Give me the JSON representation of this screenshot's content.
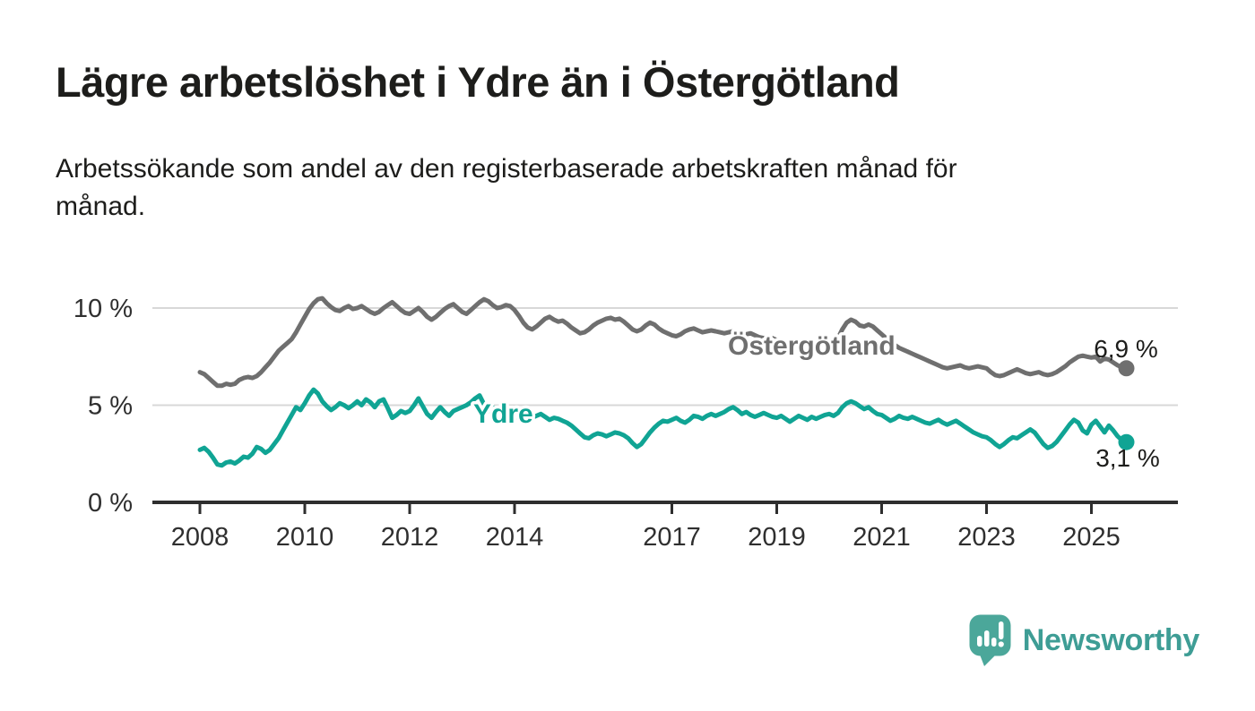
{
  "header": {
    "title": "Lägre arbetslöshet i Ydre än i Östergötland",
    "subtitle": "Arbetssökande som andel av den registerbaserade arbetskraften månad för\nmånad."
  },
  "chart_data": {
    "type": "line",
    "unit": "%",
    "frequency": "monthly",
    "x_start": "2008-01",
    "x_end": "2025-09",
    "grid": "horizontal",
    "legend": "inline-labels",
    "ylim": [
      0,
      11.2
    ],
    "x_ticks": [
      2008,
      2010,
      2012,
      2014,
      2017,
      2019,
      2021,
      2023,
      2025
    ],
    "y_axis": {
      "values": [
        0,
        5,
        10
      ],
      "labels": [
        "0 %",
        "5 %",
        "10 %"
      ]
    },
    "series": [
      {
        "name": "Östergötland",
        "color": "#6f6f6f",
        "end_label": "6,9 %",
        "end_value": 6.9,
        "values": [
          6.7,
          6.6,
          6.4,
          6.2,
          6.0,
          6.0,
          6.1,
          6.05,
          6.1,
          6.3,
          6.4,
          6.45,
          6.4,
          6.5,
          6.7,
          6.95,
          7.2,
          7.5,
          7.8,
          8.0,
          8.2,
          8.4,
          8.75,
          9.15,
          9.55,
          9.95,
          10.25,
          10.45,
          10.5,
          10.25,
          10.05,
          9.9,
          9.85,
          10.0,
          10.1,
          9.95,
          10.0,
          10.1,
          9.95,
          9.8,
          9.7,
          9.8,
          10.0,
          10.15,
          10.3,
          10.1,
          9.9,
          9.75,
          9.7,
          9.85,
          10.0,
          9.8,
          9.55,
          9.4,
          9.55,
          9.75,
          9.95,
          10.1,
          10.2,
          10.0,
          9.8,
          9.7,
          9.9,
          10.1,
          10.3,
          10.45,
          10.35,
          10.15,
          10.0,
          10.05,
          10.15,
          10.1,
          9.9,
          9.6,
          9.25,
          9.0,
          8.9,
          9.05,
          9.25,
          9.45,
          9.55,
          9.4,
          9.3,
          9.35,
          9.2,
          9.0,
          8.85,
          8.7,
          8.75,
          8.9,
          9.1,
          9.25,
          9.35,
          9.45,
          9.5,
          9.4,
          9.45,
          9.3,
          9.1,
          8.9,
          8.8,
          8.9,
          9.1,
          9.25,
          9.15,
          8.95,
          8.8,
          8.7,
          8.6,
          8.55,
          8.65,
          8.8,
          8.9,
          8.95,
          8.85,
          8.75,
          8.8,
          8.85,
          8.8,
          8.75,
          8.7,
          8.75,
          8.8,
          8.7,
          8.6,
          8.65,
          8.7,
          8.6,
          8.5,
          8.45,
          8.5,
          8.45,
          8.35,
          8.3,
          8.2,
          8.1,
          8.05,
          8.1,
          8.15,
          8.05,
          8.0,
          8.05,
          8.1,
          8.15,
          8.2,
          8.25,
          8.45,
          8.9,
          9.25,
          9.4,
          9.3,
          9.1,
          9.05,
          9.15,
          9.05,
          8.85,
          8.65,
          8.45,
          8.25,
          8.1,
          7.95,
          7.85,
          7.75,
          7.65,
          7.55,
          7.45,
          7.35,
          7.25,
          7.15,
          7.05,
          6.95,
          6.9,
          6.95,
          7.0,
          7.05,
          6.95,
          6.9,
          6.95,
          7.0,
          6.95,
          6.9,
          6.7,
          6.55,
          6.5,
          6.55,
          6.65,
          6.75,
          6.85,
          6.75,
          6.65,
          6.6,
          6.65,
          6.7,
          6.6,
          6.55,
          6.6,
          6.7,
          6.85,
          7.0,
          7.2,
          7.35,
          7.5,
          7.55,
          7.5,
          7.45,
          7.5,
          7.25,
          7.4,
          7.35,
          7.2,
          7.05,
          6.95,
          6.9
        ]
      },
      {
        "name": "Ydre",
        "color": "#10a494",
        "end_label": "3,1 %",
        "end_value": 3.1,
        "values": [
          2.7,
          2.8,
          2.6,
          2.3,
          1.95,
          1.9,
          2.05,
          2.1,
          2.0,
          2.15,
          2.35,
          2.3,
          2.5,
          2.85,
          2.75,
          2.55,
          2.7,
          3.0,
          3.3,
          3.7,
          4.1,
          4.5,
          4.9,
          4.75,
          5.1,
          5.5,
          5.8,
          5.6,
          5.2,
          4.95,
          4.75,
          4.9,
          5.1,
          5.0,
          4.85,
          5.0,
          5.2,
          5.0,
          5.3,
          5.15,
          4.9,
          5.2,
          5.3,
          4.85,
          4.35,
          4.5,
          4.7,
          4.6,
          4.7,
          5.0,
          5.35,
          4.95,
          4.55,
          4.35,
          4.65,
          4.9,
          4.65,
          4.45,
          4.7,
          4.8,
          4.9,
          5.0,
          5.15,
          5.35,
          5.5,
          5.05,
          4.7,
          4.9,
          4.65,
          4.45,
          4.6,
          4.55,
          4.35,
          4.45,
          4.6,
          4.5,
          4.35,
          4.45,
          4.55,
          4.4,
          4.25,
          4.35,
          4.3,
          4.2,
          4.1,
          3.95,
          3.75,
          3.55,
          3.35,
          3.3,
          3.45,
          3.55,
          3.5,
          3.4,
          3.5,
          3.6,
          3.55,
          3.45,
          3.3,
          3.05,
          2.85,
          3.0,
          3.3,
          3.6,
          3.85,
          4.05,
          4.2,
          4.15,
          4.25,
          4.35,
          4.2,
          4.1,
          4.25,
          4.45,
          4.4,
          4.3,
          4.45,
          4.55,
          4.45,
          4.55,
          4.65,
          4.8,
          4.9,
          4.75,
          4.55,
          4.65,
          4.5,
          4.4,
          4.5,
          4.6,
          4.5,
          4.4,
          4.35,
          4.45,
          4.3,
          4.15,
          4.3,
          4.45,
          4.35,
          4.25,
          4.4,
          4.3,
          4.4,
          4.5,
          4.55,
          4.45,
          4.6,
          4.9,
          5.1,
          5.2,
          5.1,
          4.95,
          4.8,
          4.9,
          4.7,
          4.55,
          4.5,
          4.35,
          4.2,
          4.3,
          4.45,
          4.35,
          4.3,
          4.4,
          4.3,
          4.2,
          4.1,
          4.05,
          4.15,
          4.25,
          4.1,
          4.0,
          4.1,
          4.2,
          4.05,
          3.9,
          3.75,
          3.6,
          3.5,
          3.4,
          3.35,
          3.2,
          3.0,
          2.85,
          3.0,
          3.2,
          3.35,
          3.3,
          3.45,
          3.6,
          3.75,
          3.6,
          3.3,
          3.0,
          2.8,
          2.9,
          3.1,
          3.4,
          3.7,
          4.0,
          4.25,
          4.1,
          3.7,
          3.55,
          4.0,
          4.2,
          3.9,
          3.6,
          3.95,
          3.7,
          3.4,
          3.2,
          3.1
        ]
      }
    ]
  },
  "footer": {
    "brand": "Newsworthy"
  },
  "colors": {
    "background": "#ffffff",
    "title_text": "#1d1d1b",
    "axis": "#2e2e2e",
    "gridline": "#d8d8d8",
    "ostergotland_line": "#6f6f6f",
    "ydre_line": "#10a494",
    "logo_bubble": "#4ba79a",
    "brand_text": "#3e9d95"
  }
}
